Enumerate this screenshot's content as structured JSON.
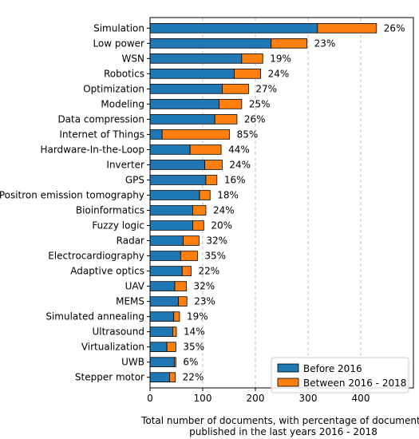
{
  "chart_data": {
    "type": "bar",
    "orientation": "horizontal",
    "stacked": true,
    "categories": [
      "Simulation",
      "Low power",
      "WSN",
      "Robotics",
      "Optimization",
      "Modeling",
      "Data compression",
      "Internet of Things",
      "Hardware-In-the-Loop",
      "Inverter",
      "GPS",
      "Positron emission tomography",
      "Bioinformatics",
      "Fuzzy logic",
      "Radar",
      "Electrocardiography",
      "Adaptive optics",
      "UAV",
      "MEMS",
      "Simulated annealing",
      "Ultrasound",
      "Virtualization",
      "UWB",
      "Stepper motor"
    ],
    "series": [
      {
        "name": "Before 2016",
        "color": "#1f77b4",
        "values": [
          318,
          230,
          174,
          160,
          137,
          131,
          123,
          23,
          76,
          104,
          106,
          94,
          81,
          81,
          63,
          58,
          61,
          47,
          54,
          45,
          43,
          32,
          46,
          37
        ]
      },
      {
        "name": "Between 2016 - 2018",
        "color": "#ff7f0e",
        "values": [
          112,
          68,
          40,
          50,
          50,
          43,
          42,
          128,
          59,
          33,
          21,
          20,
          25,
          21,
          30,
          32,
          17,
          22,
          16,
          11,
          7,
          17,
          3,
          11
        ]
      }
    ],
    "percent_labels": [
      "26%",
      "23%",
      "19%",
      "24%",
      "27%",
      "25%",
      "26%",
      "85%",
      "44%",
      "24%",
      "16%",
      "18%",
      "24%",
      "20%",
      "32%",
      "35%",
      "22%",
      "32%",
      "23%",
      "19%",
      "14%",
      "35%",
      "6%",
      "22%"
    ],
    "x_ticks": [
      "0",
      "100",
      "200",
      "300",
      "400"
    ],
    "xlim": [
      0,
      500
    ],
    "grid": "vertical dashed at 100-unit intervals",
    "legend_position": "bottom-right",
    "xlabel_line1": "Total number of documents, with percentage of documents",
    "xlabel_line2": "published in the last years 2016 - 2018",
    "title": "",
    "ylabel": ""
  }
}
